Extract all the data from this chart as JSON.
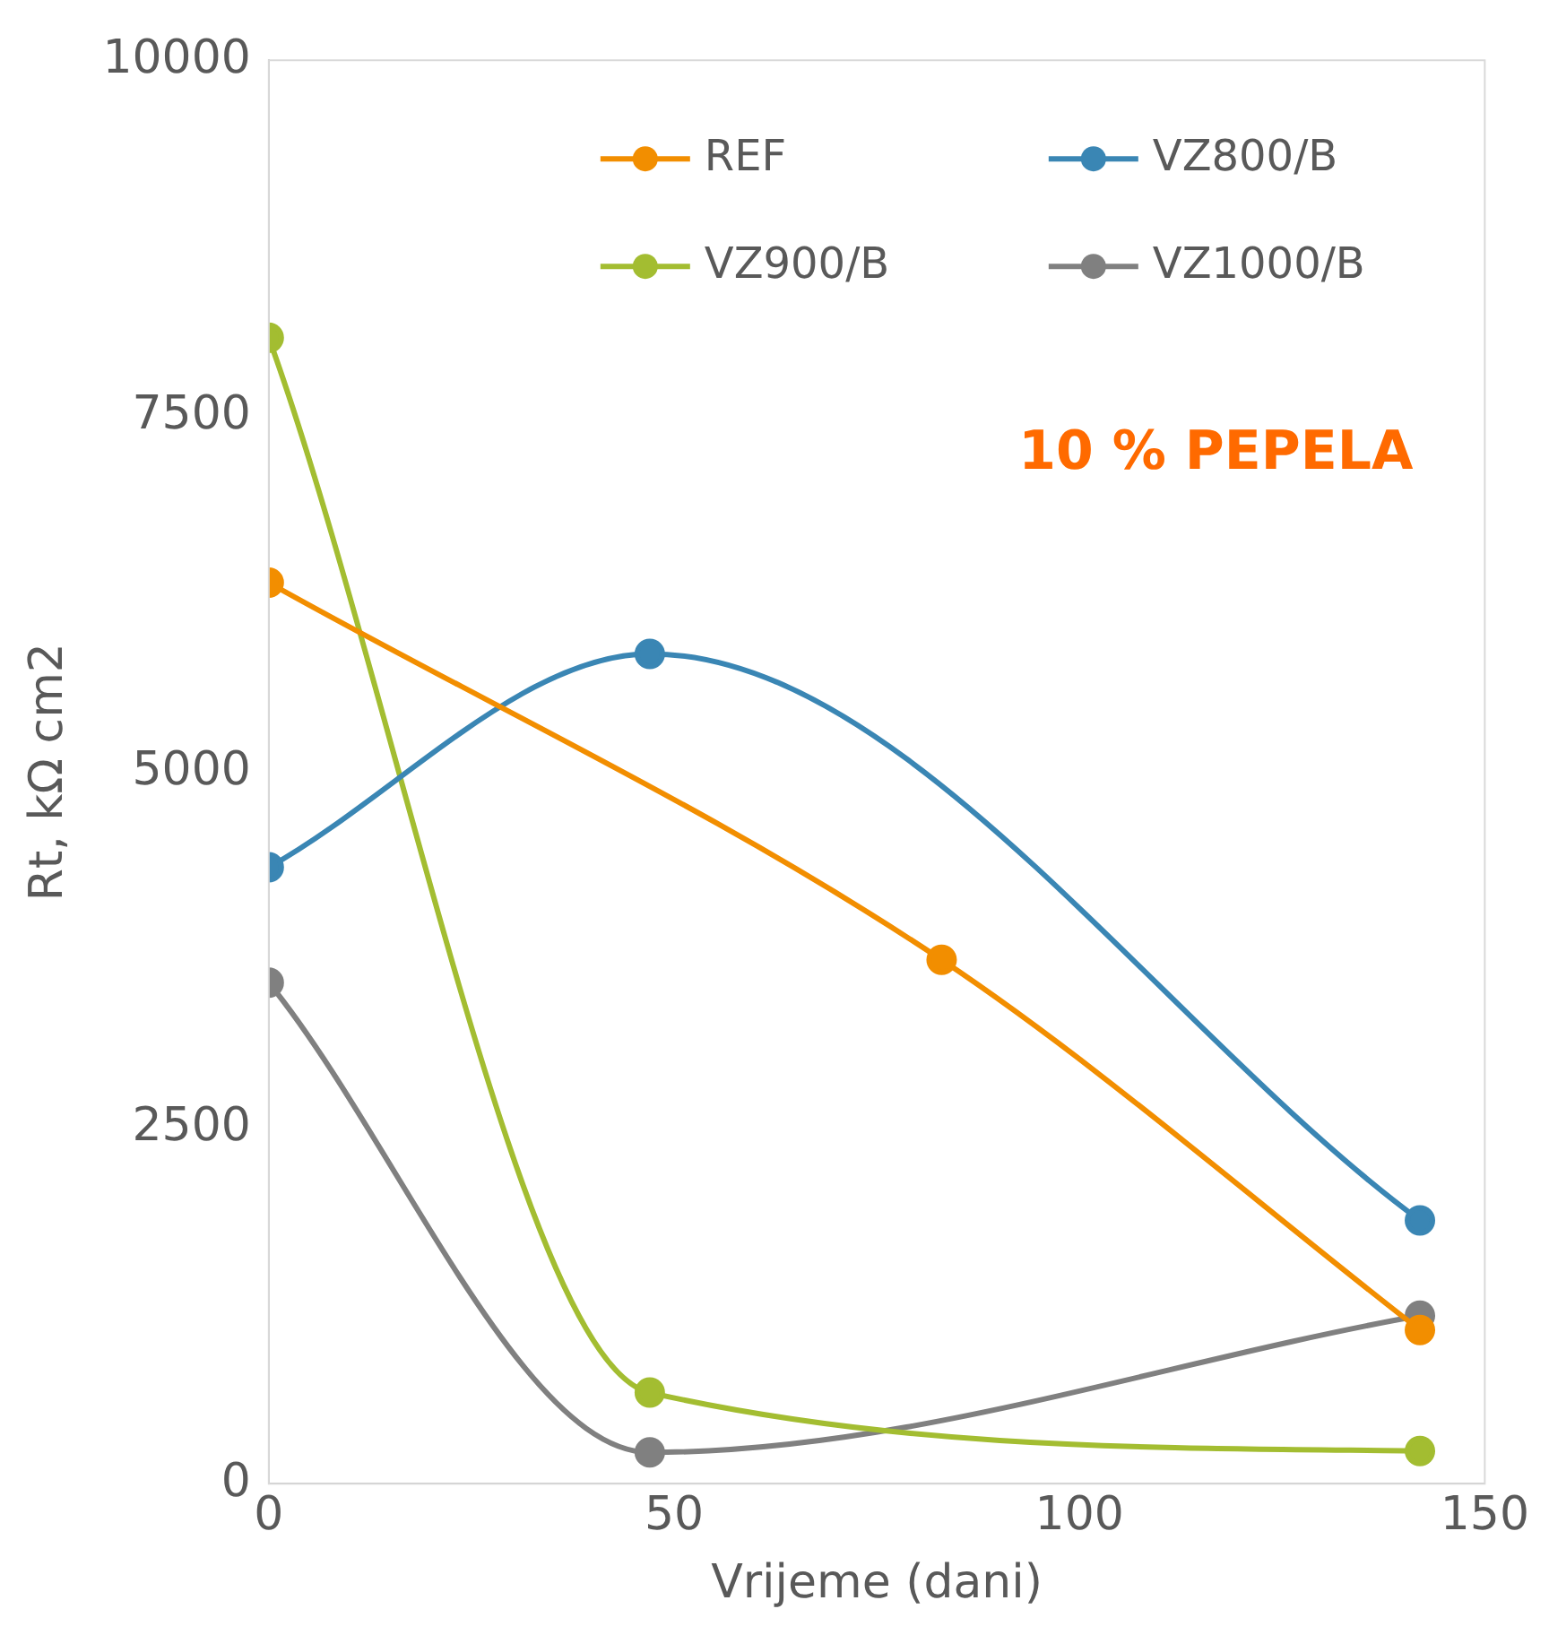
{
  "chart_data": {
    "type": "line",
    "xlabel": "Vrijeme (dani)",
    "ylabel": "Rt, kΩ cm2",
    "annotations": [
      "10 % PEPELA"
    ],
    "series": [
      {
        "name": "REF",
        "color": "#f28e00",
        "x": [
          0,
          83,
          142
        ],
        "values": [
          6330,
          3680,
          1080
        ]
      },
      {
        "name": "VZ800/B",
        "color": "#3a86b4",
        "x": [
          0,
          47,
          142
        ],
        "values": [
          4330,
          5830,
          1850
        ]
      },
      {
        "name": "VZ900/B",
        "color": "#a3bd31",
        "x": [
          0,
          47,
          142
        ],
        "values": [
          8050,
          640,
          230
        ]
      },
      {
        "name": "VZ1000/B",
        "color": "#808080",
        "x": [
          0,
          47,
          142
        ],
        "values": [
          3520,
          220,
          1180
        ]
      }
    ],
    "xlim": [
      0,
      150
    ],
    "xticks": [
      0,
      50,
      100,
      150
    ],
    "ylim": [
      0,
      10000
    ],
    "yticks": [
      0,
      2500,
      5000,
      7500,
      10000
    ],
    "grid": false,
    "legend": "top right",
    "marker": "circle",
    "line_style": "solid"
  }
}
